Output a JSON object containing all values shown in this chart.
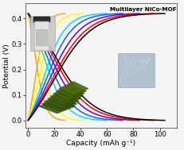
{
  "title": "Multilayer NiCo-MOF",
  "xlabel": "Capacity (mAh g⁻¹)",
  "ylabel": "Potential (V)",
  "xlim": [
    -2,
    113
  ],
  "ylim": [
    -0.03,
    0.46
  ],
  "xticks": [
    0,
    20,
    40,
    60,
    80,
    100
  ],
  "yticks": [
    0.0,
    0.1,
    0.2,
    0.3,
    0.4
  ],
  "colors": [
    "orange",
    "yellow",
    "#00DDFF",
    "#2255FF",
    "#6600CC",
    "red",
    "black"
  ],
  "max_capacities": [
    28,
    42,
    60,
    72,
    85,
    96,
    104
  ],
  "vmax": 0.42,
  "v_cross": 0.205,
  "lw": 1.1,
  "bg_color": "#f5f5f5"
}
